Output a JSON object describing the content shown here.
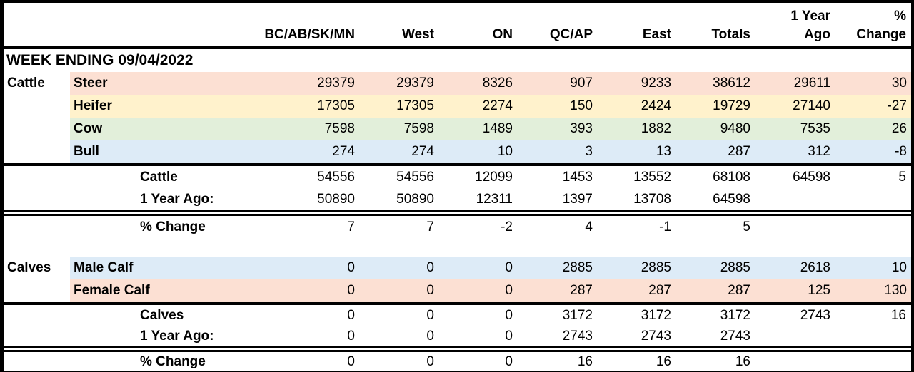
{
  "colors": {
    "salmon": "#fce0d3",
    "yellow": "#fff2cc",
    "green": "#e2efda",
    "blue": "#ddebf7",
    "border": "#000000",
    "background": "#ffffff"
  },
  "header": {
    "regions": [
      "BC/AB/SK/MN",
      "West",
      "ON",
      "QC/AP",
      "East",
      "Totals"
    ],
    "year_ago": [
      "1 Year",
      "Ago"
    ],
    "pct": [
      "%",
      "Change"
    ]
  },
  "banner": "WEEK ENDING 09/04/2022",
  "cattle": {
    "label": "Cattle",
    "rows": [
      {
        "label": "Steer",
        "band": "salmon",
        "v": [
          "29379",
          "29379",
          "8326",
          "907",
          "9233",
          "38612",
          "29611",
          "30"
        ]
      },
      {
        "label": "Heifer",
        "band": "yellow",
        "v": [
          "17305",
          "17305",
          "2274",
          "150",
          "2424",
          "19729",
          "27140",
          "-27"
        ]
      },
      {
        "label": "Cow",
        "band": "green",
        "v": [
          "7598",
          "7598",
          "1489",
          "393",
          "1882",
          "9480",
          "7535",
          "26"
        ]
      },
      {
        "label": "Bull",
        "band": "blue",
        "v": [
          "274",
          "274",
          "10",
          "3",
          "13",
          "287",
          "312",
          "-8"
        ]
      }
    ],
    "total": {
      "label": "Cattle",
      "v": [
        "54556",
        "54556",
        "12099",
        "1453",
        "13552",
        "68108",
        "64598",
        "5"
      ]
    },
    "year_ago": {
      "label": "1 Year Ago:",
      "v": [
        "50890",
        "50890",
        "12311",
        "1397",
        "13708",
        "64598",
        "",
        ""
      ]
    },
    "pct": {
      "label": "% Change",
      "v": [
        "7",
        "7",
        "-2",
        "4",
        "-1",
        "5",
        "",
        ""
      ]
    }
  },
  "calves": {
    "label": "Calves",
    "rows": [
      {
        "label": "Male Calf",
        "band": "blue",
        "v": [
          "0",
          "0",
          "0",
          "2885",
          "2885",
          "2885",
          "2618",
          "10"
        ]
      },
      {
        "label": "Female Calf",
        "band": "salmon",
        "v": [
          "0",
          "0",
          "0",
          "287",
          "287",
          "287",
          "125",
          "130"
        ]
      }
    ],
    "total": {
      "label": "Calves",
      "v": [
        "0",
        "0",
        "0",
        "3172",
        "3172",
        "3172",
        "2743",
        "16"
      ]
    },
    "year_ago": {
      "label": "1 Year Ago:",
      "v": [
        "0",
        "0",
        "0",
        "2743",
        "2743",
        "2743",
        "",
        ""
      ]
    },
    "pct": {
      "label": "% Change",
      "v": [
        "0",
        "0",
        "0",
        "16",
        "16",
        "16",
        "",
        ""
      ]
    }
  }
}
